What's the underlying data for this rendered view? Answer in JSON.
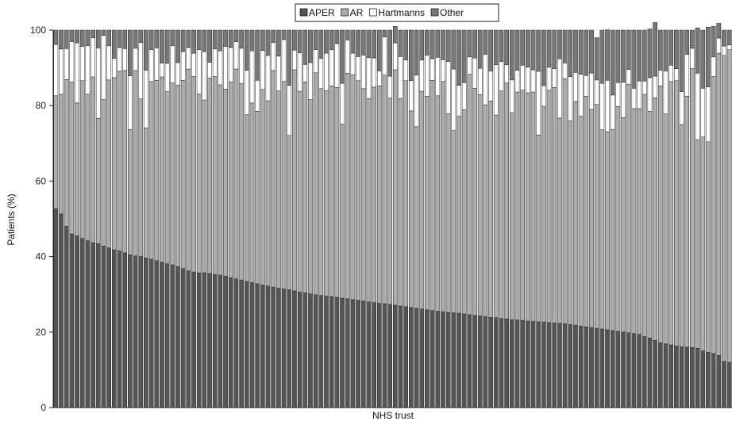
{
  "chart_data": {
    "type": "bar",
    "stacked": true,
    "xlabel": "NHS trust",
    "ylabel": "Patients (%)",
    "ylim": [
      0,
      100
    ],
    "yticks": [
      0,
      20,
      40,
      60,
      80,
      100
    ],
    "grid": false,
    "legend_position": "top-center",
    "series": [
      {
        "name": "APER",
        "color": "#555555",
        "values": [
          52.7,
          51.3,
          48.0,
          46.0,
          45.5,
          44.8,
          44.2,
          43.7,
          43.4,
          42.8,
          42.3,
          41.8,
          41.5,
          41.0,
          40.5,
          40.2,
          40.0,
          39.6,
          39.3,
          38.9,
          38.5,
          38.1,
          37.8,
          37.3,
          36.8,
          36.2,
          35.9,
          35.7,
          35.7,
          35.5,
          35.3,
          35.1,
          34.8,
          34.4,
          34.1,
          33.8,
          33.4,
          33.1,
          32.8,
          32.5,
          32.2,
          31.9,
          31.6,
          31.4,
          31.2,
          30.9,
          30.6,
          30.4,
          30.1,
          29.9,
          29.7,
          29.5,
          29.4,
          29.2,
          29.0,
          28.8,
          28.6,
          28.4,
          28.2,
          28.0,
          27.8,
          27.6,
          27.5,
          27.3,
          27.1,
          26.9,
          26.7,
          26.5,
          26.3,
          26.1,
          25.9,
          25.7,
          25.5,
          25.4,
          25.2,
          25.1,
          25.0,
          24.8,
          24.6,
          24.4,
          24.3,
          24.1,
          23.9,
          23.8,
          23.6,
          23.5,
          23.3,
          23.2,
          23.1,
          22.9,
          22.8,
          22.7,
          22.6,
          22.5,
          22.4,
          22.3,
          22.2,
          22.0,
          21.8,
          21.6,
          21.4,
          21.2,
          21.0,
          20.8,
          20.6,
          20.4,
          20.2,
          20.0,
          19.8,
          19.6,
          19.4,
          18.8,
          18.4,
          17.8,
          17.2,
          16.9,
          16.6,
          16.3,
          16.1,
          16.0,
          15.9,
          15.7,
          15.0,
          14.6,
          14.3,
          13.8,
          12.2,
          12.0
        ]
      },
      {
        "name": "AR",
        "color": "#adadad",
        "values": [
          29.9,
          31.7,
          38.9,
          40.3,
          35.2,
          41.8,
          38.8,
          43.9,
          33.2,
          38.8,
          44.5,
          45.6,
          47.6,
          48.3,
          33.2,
          49.1,
          41.8,
          34.5,
          47.1,
          47.8,
          49.1,
          45.6,
          48.2,
          48.1,
          49.9,
          53.5,
          51.8,
          47.4,
          45.8,
          51.8,
          52.4,
          50.4,
          49.6,
          51.9,
          55.6,
          52.1,
          44.2,
          47.6,
          45.7,
          51.8,
          49.1,
          57.4,
          52.3,
          55.0,
          40.9,
          58.6,
          53.2,
          55.9,
          51.5,
          58.8,
          54.8,
          54.5,
          55.8,
          55.6,
          46.1,
          59.8,
          59.6,
          58.2,
          56.3,
          53.9,
          57.1,
          57.6,
          60.6,
          54.7,
          62.4,
          55.0,
          59.9,
          52.1,
          48.1,
          57.7,
          56.6,
          61.0,
          57.1,
          61.0,
          52.7,
          48.3,
          52.2,
          54.1,
          63.7,
          60.2,
          58.6,
          56.1,
          57.3,
          53.7,
          60.3,
          62.5,
          54.8,
          60.4,
          61.0,
          60.5,
          60.8,
          49.5,
          57.2,
          61.6,
          62.4,
          54.4,
          64.9,
          54.0,
          59.3,
          55.6,
          61.1,
          57.8,
          59.3,
          52.8,
          52.5,
          53.3,
          59.6,
          56.8,
          65.8,
          59.6,
          59.8,
          64.2,
          60.1,
          64.3,
          68.0,
          60.9,
          69.8,
          70.3,
          58.9,
          66.5,
          73.9,
          55.3,
          56.7,
          55.8,
          73.4,
          80.1,
          81.1,
          82.8
        ]
      },
      {
        "name": "Hartmanns",
        "color": "#ffffff",
        "values": [
          13.6,
          12.0,
          8.2,
          10.6,
          15.9,
          9.1,
          12.9,
          10.4,
          18.7,
          17.0,
          9.1,
          5.1,
          6.3,
          5.8,
          14.2,
          5.9,
          14.9,
          15.3,
          8.4,
          8.6,
          3.7,
          7.5,
          9.9,
          6.0,
          7.6,
          5.7,
          6.2,
          11.7,
          12.8,
          4.2,
          7.3,
          9.0,
          11.3,
          9.1,
          7.2,
          9.3,
          11.8,
          13.8,
          8.2,
          10.3,
          12.0,
          7.4,
          9.2,
          11.1,
          13.3,
          5.2,
          10.2,
          4.6,
          9.8,
          6.1,
          8.0,
          9.9,
          9.6,
          11.6,
          10.8,
          8.8,
          5.7,
          6.4,
          8.9,
          10.8,
          7.7,
          4.0,
          10.1,
          5.8,
          7.1,
          11.1,
          5.5,
          8.0,
          13.7,
          8.3,
          10.9,
          5.7,
          10.2,
          5.8,
          13.8,
          16.3,
          8.2,
          7.2,
          4.6,
          8.0,
          7.0,
          13.4,
          8.0,
          13.3,
          7.8,
          4.8,
          8.7,
          5.8,
          6.6,
          6.8,
          5.9,
          16.9,
          5.5,
          6.1,
          5.0,
          15.7,
          4.2,
          11.7,
          7.7,
          11.1,
          5.5,
          9.6,
          6.5,
          12.3,
          13.6,
          9.1,
          6.3,
          9.4,
          4.0,
          5.4,
          7.3,
          3.5,
          8.9,
          5.7,
          4.2,
          11.4,
          4.3,
          3.2,
          8.7,
          11.1,
          5.4,
          17.6,
          12.9,
          14.6,
          5.2,
          4.0,
          2.5,
          1.3
        ]
      },
      {
        "name": "Other",
        "color": "#787878",
        "values": [
          3.8,
          5.0,
          4.9,
          3.1,
          3.4,
          4.3,
          4.1,
          2.0,
          4.7,
          1.4,
          4.1,
          7.5,
          4.6,
          4.9,
          12.1,
          4.8,
          3.3,
          10.6,
          5.2,
          4.7,
          8.7,
          8.8,
          4.1,
          8.6,
          5.7,
          4.6,
          6.1,
          5.2,
          5.7,
          8.5,
          5.0,
          5.5,
          4.3,
          4.6,
          3.1,
          4.8,
          10.6,
          5.5,
          13.3,
          5.4,
          6.7,
          3.3,
          6.9,
          2.5,
          14.6,
          5.3,
          6.0,
          9.1,
          8.6,
          5.2,
          7.5,
          6.1,
          5.2,
          3.6,
          14.1,
          2.6,
          6.1,
          7.0,
          6.6,
          7.3,
          7.4,
          10.8,
          1.8,
          12.2,
          4.4,
          7.0,
          7.9,
          13.4,
          11.9,
          7.9,
          6.6,
          7.6,
          7.2,
          7.8,
          8.3,
          10.3,
          14.6,
          13.9,
          7.1,
          7.4,
          10.1,
          6.4,
          10.8,
          9.2,
          8.3,
          9.2,
          13.2,
          10.6,
          9.3,
          9.8,
          10.5,
          10.9,
          14.7,
          9.8,
          10.2,
          7.6,
          8.7,
          12.3,
          11.2,
          11.7,
          12.0,
          11.4,
          11.2,
          14.1,
          13.4,
          17.2,
          13.9,
          13.8,
          10.4,
          15.4,
          13.5,
          13.5,
          12.9,
          14.2,
          10.6,
          10.8,
          9.3,
          10.2,
          16.3,
          6.4,
          4.8,
          12.0,
          15.4,
          15.8,
          8.1,
          3.9,
          4.2,
          3.9
        ]
      }
    ]
  }
}
